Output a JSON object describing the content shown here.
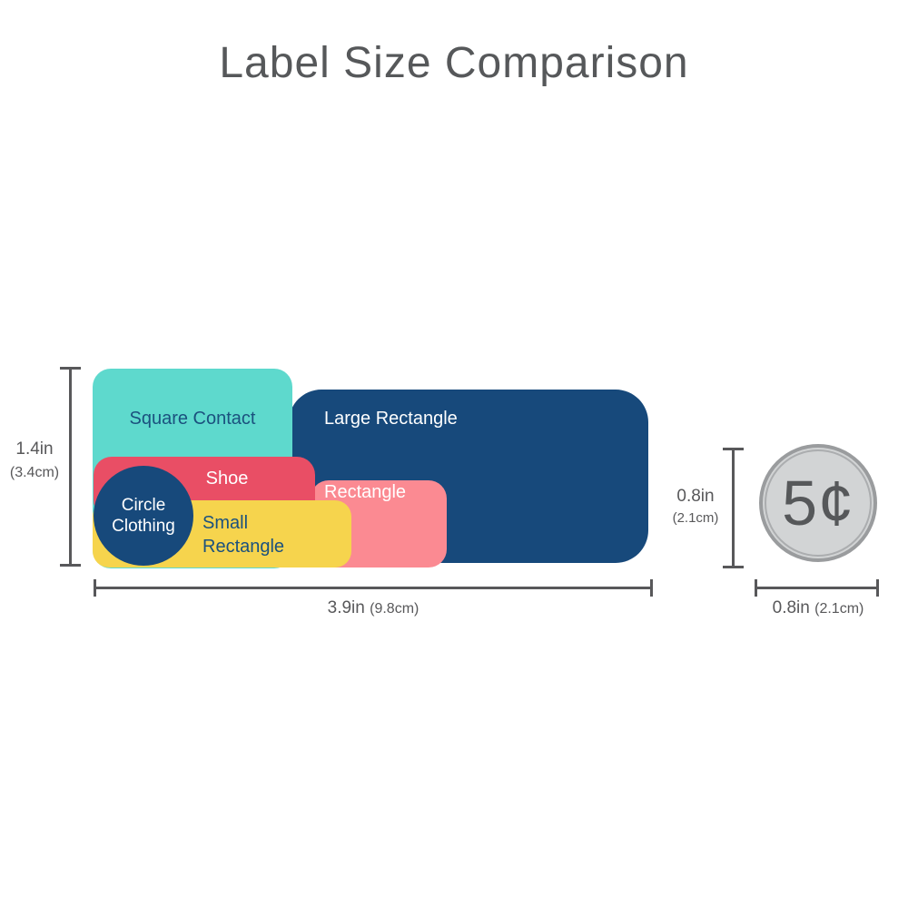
{
  "title": "Label Size Comparison",
  "labels": {
    "square_contact": "Square Contact",
    "large_rectangle": "Large Rectangle",
    "shoe": "Shoe",
    "rectangle": "Rectangle",
    "small_rectangle": "Small\nRectangle",
    "circle_clothing": "Circle\nClothing"
  },
  "dimensions": {
    "label_height_in": "1.4in",
    "label_height_cm": "(3.4cm)",
    "label_width_in": "3.9in",
    "label_width_cm": "(9.8cm)",
    "coin_height_in": "0.8in",
    "coin_height_cm": "(2.1cm)",
    "coin_width_in": "0.8in",
    "coin_width_cm": "(2.1cm)"
  },
  "coin": {
    "value": "5¢"
  },
  "colors": {
    "teal": "#5ED9CD",
    "navy": "#17497B",
    "red": "#E94E65",
    "pink": "#FB8A92",
    "yellow": "#F6D44D",
    "coin_fill": "#D2D4D5",
    "coin_border": "#9A9C9E",
    "dim_gray": "#58585A",
    "title_gray": "#56585A",
    "label_navy_text": "#1B517E",
    "label_white_text": "#FFFFFF"
  }
}
